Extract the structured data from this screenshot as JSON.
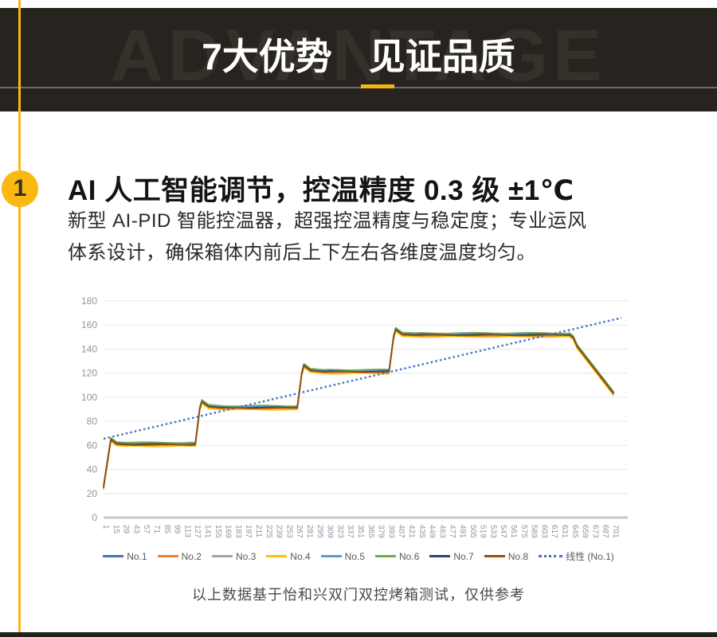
{
  "header": {
    "watermark": "ADVANTAGE",
    "title": "7大优势　见证品质"
  },
  "section": {
    "number": "1",
    "title": "AI 人工智能调节，控温精度 0.3 级 ±1℃",
    "body_line1": "新型 AI-PID 智能控温器，超强控温精度与稳定度；专业运风",
    "body_line2": "体系设计，确保箱体内前后上下左右各维度温度均匀。",
    "caption": "以上数据基于怡和兴双门双控烤箱测试，仅供参考"
  },
  "colors": {
    "accent_yellow": "#FBB712",
    "header_bg": "#272420",
    "watermark_gray": "#34302A",
    "divider_gray": "#6E6C66",
    "axis_text": "#8E959F",
    "legend_text": "#595959"
  },
  "chart_data": {
    "type": "line",
    "title": "",
    "xlabel": "",
    "ylabel": "",
    "ylim": [
      0,
      180
    ],
    "y_ticks": [
      0,
      20,
      40,
      60,
      80,
      100,
      120,
      140,
      160,
      180
    ],
    "grid": "horizontal",
    "legend_position": "bottom",
    "x_tick_labels": [
      1,
      15,
      29,
      43,
      57,
      71,
      85,
      99,
      113,
      127,
      141,
      155,
      169,
      183,
      197,
      211,
      225,
      239,
      253,
      267,
      281,
      295,
      309,
      323,
      337,
      351,
      365,
      379,
      393,
      407,
      421,
      435,
      449,
      463,
      477,
      491,
      505,
      519,
      533,
      547,
      561,
      575,
      589,
      603,
      617,
      631,
      645,
      659,
      673,
      687,
      701
    ],
    "profile_keypoints": [
      [
        1,
        25
      ],
      [
        11,
        64.5
      ],
      [
        19,
        61
      ],
      [
        32,
        60.5
      ],
      [
        127,
        60.5
      ],
      [
        133,
        90
      ],
      [
        136,
        96
      ],
      [
        145,
        92
      ],
      [
        162,
        91
      ],
      [
        267,
        91
      ],
      [
        273,
        119
      ],
      [
        276,
        126
      ],
      [
        285,
        122
      ],
      [
        302,
        121
      ],
      [
        393,
        121
      ],
      [
        399,
        149
      ],
      [
        402,
        156
      ],
      [
        411,
        152
      ],
      [
        428,
        151.5
      ],
      [
        641,
        151.5
      ],
      [
        646,
        149
      ],
      [
        651,
        142
      ],
      [
        701,
        103
      ]
    ],
    "series": [
      {
        "name": "No.1",
        "color": "#4472C4",
        "offset": 0.9
      },
      {
        "name": "No.2",
        "color": "#ED7D31",
        "offset": -0.7
      },
      {
        "name": "No.3",
        "color": "#A5A5A5",
        "offset": 0.3
      },
      {
        "name": "No.4",
        "color": "#FFC000",
        "offset": -1.3
      },
      {
        "name": "No.5",
        "color": "#5B9BD5",
        "offset": 1.3
      },
      {
        "name": "No.6",
        "color": "#70AD47",
        "offset": 1.9
      },
      {
        "name": "No.7",
        "color": "#264478",
        "offset": 0.5
      },
      {
        "name": "No.8",
        "color": "#9E480E",
        "offset": 0
      }
    ],
    "trendline": {
      "name": "线性 (No.1)",
      "color": "#4472C4",
      "style": "dotted",
      "points": [
        [
          1,
          65.5
        ],
        [
          712,
          166
        ]
      ]
    }
  }
}
